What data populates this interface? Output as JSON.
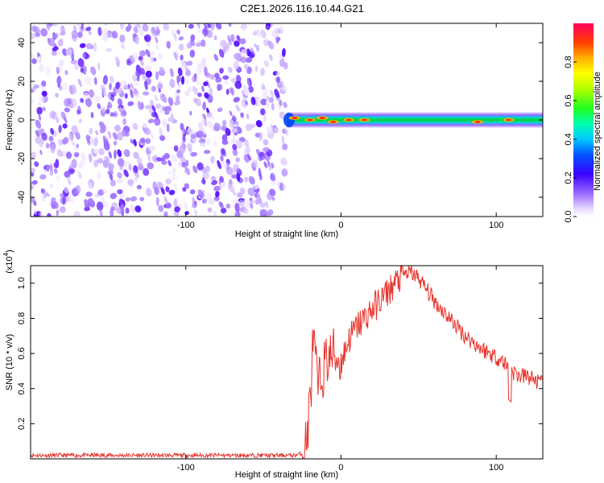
{
  "title": "C2E1.2026.116.10.44.G21",
  "chart_data": [
    {
      "type": "heatmap",
      "xlabel": "Height of straight line (km)",
      "ylabel": "Frequency (Hz)",
      "xlim": [
        -200,
        130
      ],
      "ylim": [
        -50,
        50
      ],
      "xticks": [
        -100,
        0,
        100
      ],
      "yticks": [
        -40,
        -20,
        0,
        20,
        40
      ],
      "colorbar": {
        "label": "Normalized spectral amplitude",
        "range": [
          0,
          1
        ],
        "ticks": [
          0.0,
          0.2,
          0.4,
          0.6,
          0.8
        ]
      },
      "regions": [
        {
          "name": "noise",
          "x": [
            -200,
            -35
          ],
          "y": [
            -50,
            50
          ],
          "amplitude": [
            0.05,
            0.3
          ]
        },
        {
          "name": "signal",
          "x": [
            -35,
            130
          ],
          "y": [
            -4,
            4
          ],
          "center_frequency": 0,
          "amplitude": [
            0.4,
            1.0
          ]
        }
      ],
      "peaks": [
        {
          "x": -30,
          "y": 1
        },
        {
          "x": -20,
          "y": 0
        },
        {
          "x": -12,
          "y": 1
        },
        {
          "x": -5,
          "y": -1
        },
        {
          "x": 5,
          "y": 0
        },
        {
          "x": 15,
          "y": 0
        },
        {
          "x": 88,
          "y": -1
        },
        {
          "x": 108,
          "y": 0
        }
      ]
    },
    {
      "type": "line",
      "xlabel": "Height of straight line (km)",
      "ylabel": "SNR (10 * v/v)",
      "yscale_label": "(x10^4)",
      "xlim": [
        -200,
        130
      ],
      "ylim": [
        0,
        1.1
      ],
      "xticks": [
        -100,
        0,
        100
      ],
      "yticks": [
        0.2,
        0.4,
        0.6,
        0.8,
        1.0
      ],
      "series": [
        {
          "color": "#e8322b",
          "x": [
            -200,
            -150,
            -100,
            -60,
            -30,
            -25,
            -22,
            -20,
            -19,
            -18,
            -15,
            -10,
            -5,
            0,
            5,
            10,
            20,
            30,
            40,
            45,
            50,
            60,
            70,
            80,
            90,
            100,
            105,
            110,
            115,
            120,
            125,
            130
          ],
          "y": [
            0.02,
            0.02,
            0.02,
            0.02,
            0.02,
            0.03,
            0.1,
            0.35,
            0.45,
            0.7,
            0.4,
            0.55,
            0.6,
            0.55,
            0.68,
            0.75,
            0.85,
            0.95,
            1.05,
            1.06,
            1.03,
            0.9,
            0.8,
            0.7,
            0.63,
            0.58,
            0.55,
            0.5,
            0.47,
            0.47,
            0.45,
            0.42
          ]
        }
      ]
    }
  ]
}
